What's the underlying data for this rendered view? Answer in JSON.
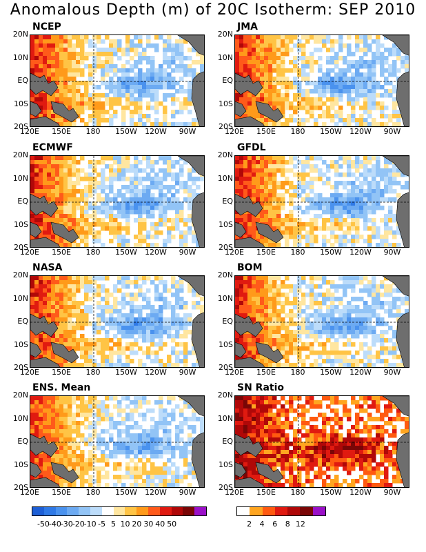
{
  "title": "Anomalous Depth (m) of 20C Isotherm: SEP 2010",
  "chart_data": {
    "type": "heatmap",
    "grid": false,
    "x_ticks": [
      "120E",
      "150E",
      "180",
      "150W",
      "120W",
      "90W"
    ],
    "y_ticks": [
      "20N",
      "10N",
      "EQ",
      "10S",
      "20S"
    ],
    "panels": [
      {
        "title": "NCEP",
        "colorbar": "anomaly"
      },
      {
        "title": "JMA",
        "colorbar": "anomaly"
      },
      {
        "title": "ECMWF",
        "colorbar": "anomaly"
      },
      {
        "title": "GFDL",
        "colorbar": "anomaly"
      },
      {
        "title": "NASA",
        "colorbar": "anomaly"
      },
      {
        "title": "BOM",
        "colorbar": "anomaly"
      },
      {
        "title": "ENS. Mean",
        "colorbar": "anomaly"
      },
      {
        "title": "SN Ratio",
        "colorbar": "ratio"
      }
    ],
    "colorbars": {
      "anomaly": {
        "labels": [
          "-50",
          "-40",
          "-30",
          "-20",
          "-10",
          "-5",
          "5",
          "10",
          "20",
          "30",
          "40",
          "50"
        ],
        "colors": [
          "#1d5fd6",
          "#2f79e6",
          "#4a92ee",
          "#6caaf2",
          "#92c4f6",
          "#bcdcfa",
          "#ffffff",
          "#ffe6a0",
          "#ffc445",
          "#ff9a1a",
          "#ff5a1a",
          "#e01a10",
          "#b00808",
          "#7a0606",
          "#9a10c8"
        ]
      },
      "ratio": {
        "labels": [
          "2",
          "4",
          "6",
          "8",
          "12"
        ],
        "colors": [
          "#ffffff",
          "#ffa520",
          "#ff5a10",
          "#e01a10",
          "#b00808",
          "#7a0606",
          "#9a10c8"
        ]
      }
    }
  }
}
